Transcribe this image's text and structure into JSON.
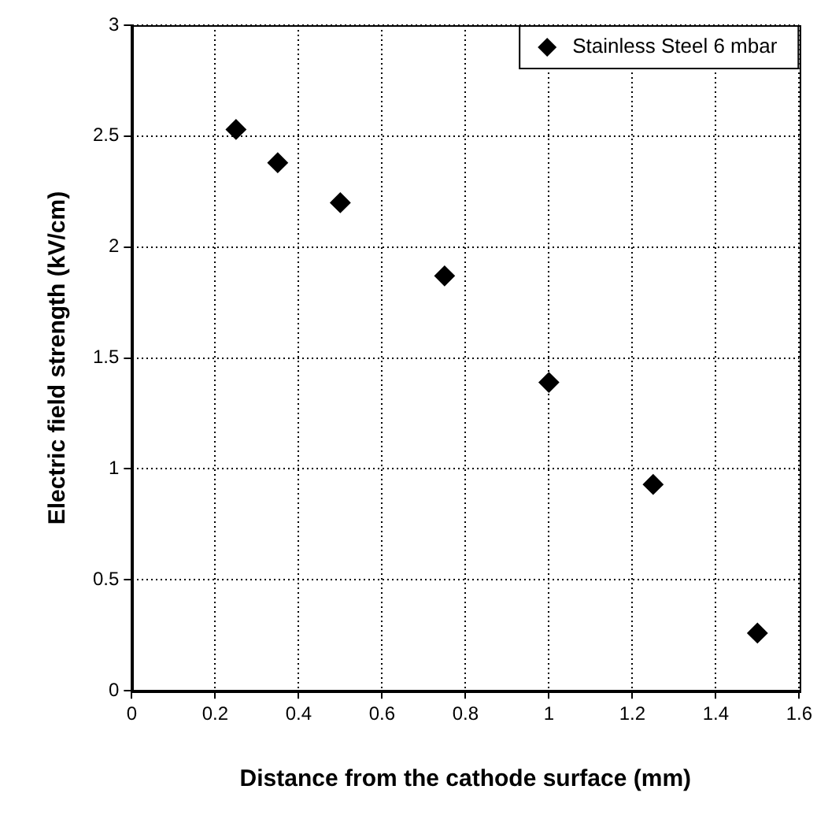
{
  "chart_data": {
    "type": "scatter",
    "xlabel": "Distance from the cathode surface (mm)",
    "ylabel": "Electric field strength (kV/cm)",
    "x": [
      0.25,
      0.35,
      0.5,
      0.75,
      1.0,
      1.25,
      1.5
    ],
    "series": [
      {
        "name": "Stainless Steel 6 mbar",
        "color": "#000000",
        "values": [
          2.53,
          2.38,
          2.2,
          1.87,
          1.39,
          0.93,
          0.26
        ]
      }
    ],
    "xlim": [
      0,
      1.6
    ],
    "xticks": [
      0,
      0.2,
      0.4,
      0.6,
      0.8,
      1,
      1.2,
      1.4,
      1.6
    ],
    "ylim": [
      0,
      3
    ],
    "yticks": [
      0,
      0.5,
      1,
      1.5,
      2,
      2.5,
      3
    ],
    "grid": true,
    "legend": "top right",
    "marker": "diamond"
  }
}
